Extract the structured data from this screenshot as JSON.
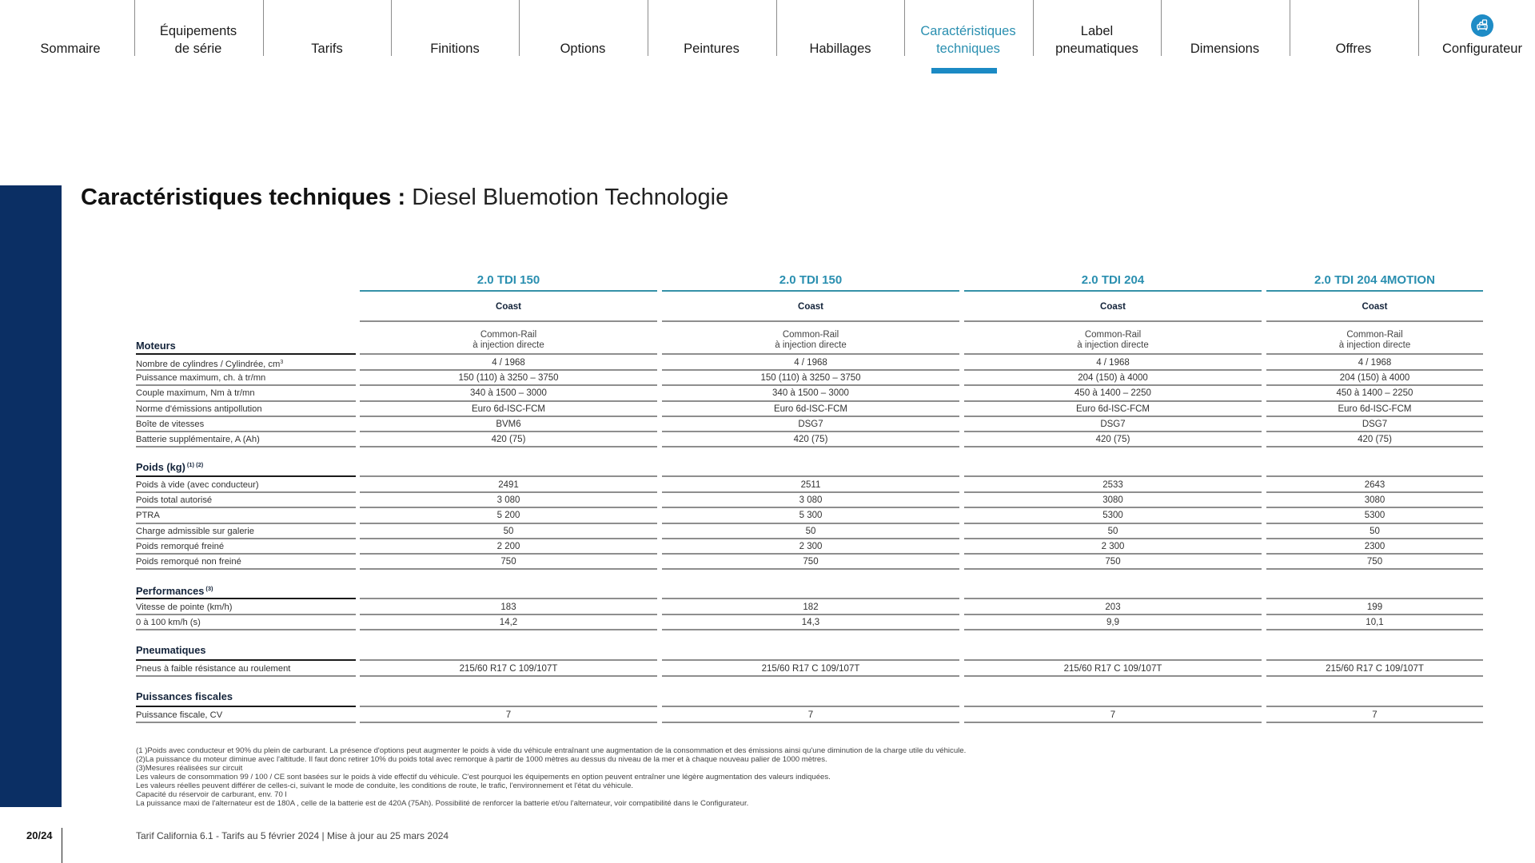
{
  "nav": {
    "items": [
      {
        "label": "Sommaire",
        "active": false
      },
      {
        "label": "Équipements\nde série",
        "active": false
      },
      {
        "label": "Tarifs",
        "active": false
      },
      {
        "label": "Finitions",
        "active": false
      },
      {
        "label": "Options",
        "active": false
      },
      {
        "label": "Peintures",
        "active": false
      },
      {
        "label": "Habillages",
        "active": false
      },
      {
        "label": "Caractéristiques\ntechniques",
        "active": true
      },
      {
        "label": "Label\npneumatiques",
        "active": false
      },
      {
        "label": "Dimensions",
        "active": false
      },
      {
        "label": "Offres",
        "active": false
      },
      {
        "label": "Configurateur",
        "active": false,
        "icon": "car-configurator-icon"
      }
    ],
    "active_color": "#2a8fb0",
    "underline_color": "#1b8ac4"
  },
  "page": {
    "title_bold": "Caractéristiques techniques :",
    "title_light": " Diesel Bluemotion Technologie",
    "sidebar_color": "#0b2f64"
  },
  "table": {
    "columns": [
      {
        "model": "2.0 TDI 150",
        "trim": "Coast",
        "injection_1": "Common-Rail",
        "injection_2": "à injection directe"
      },
      {
        "model": "2.0 TDI 150",
        "trim": "Coast",
        "injection_1": "Common-Rail",
        "injection_2": "à injection directe"
      },
      {
        "model": "2.0 TDI 204",
        "trim": "Coast",
        "injection_1": "Common-Rail",
        "injection_2": "à injection directe"
      },
      {
        "model": "2.0 TDI 204 4MOTION",
        "trim": "Coast",
        "injection_1": "Common-Rail",
        "injection_2": "à injection directe"
      }
    ],
    "sections": [
      {
        "title": "Moteurs",
        "sup": "",
        "rows": [
          {
            "label": "Nombre de cylindres / Cylindrée, cm",
            "label_sup": "3",
            "values": [
              "4 / 1968",
              "4 / 1968",
              "4 / 1968",
              "4 / 1968"
            ]
          },
          {
            "label": "Puissance maximum, ch. à tr/mn",
            "values": [
              "150 (110) à 3250 – 3750",
              "150 (110) à 3250 – 3750",
              "204 (150) à 4000",
              "204 (150) à 4000"
            ]
          },
          {
            "label": "Couple maximum, Nm à tr/mn",
            "values": [
              "340 à 1500 – 3000",
              "340 à 1500 – 3000",
              "450 à 1400 – 2250",
              "450 à 1400 – 2250"
            ]
          },
          {
            "label": "Norme d'émissions antipollution",
            "values": [
              "Euro 6d-ISC-FCM",
              "Euro 6d-ISC-FCM",
              "Euro 6d-ISC-FCM",
              "Euro 6d-ISC-FCM"
            ]
          },
          {
            "label": "Boîte de vitesses",
            "values": [
              "BVM6",
              "DSG7",
              "DSG7",
              "DSG7"
            ]
          },
          {
            "label": "Batterie supplémentaire, A (Ah)",
            "values": [
              "420 (75)",
              "420 (75)",
              "420 (75)",
              "420 (75)"
            ]
          }
        ]
      },
      {
        "title": "Poids (kg)",
        "sup": "(1) (2)",
        "rows": [
          {
            "label": "Poids à vide (avec conducteur)",
            "values": [
              "2491",
              "2511",
              "2533",
              "2643"
            ]
          },
          {
            "label": "Poids total autorisé",
            "values": [
              "3 080",
              "3 080",
              "3080",
              "3080"
            ]
          },
          {
            "label": "PTRA",
            "values": [
              "5 200",
              "5 300",
              "5300",
              "5300"
            ]
          },
          {
            "label": "Charge admissible sur galerie",
            "values": [
              "50",
              "50",
              "50",
              "50"
            ]
          },
          {
            "label": "Poids remorqué freiné",
            "values": [
              "2 200",
              "2 300",
              "2 300",
              "2300"
            ]
          },
          {
            "label": "Poids remorqué non freiné",
            "values": [
              "750",
              "750",
              "750",
              "750"
            ]
          }
        ]
      },
      {
        "title": "Performances",
        "sup": "(3)",
        "rows": [
          {
            "label": "Vitesse de pointe (km/h)",
            "values": [
              "183",
              "182",
              "203",
              "199"
            ]
          },
          {
            "label": "0 à 100 km/h (s)",
            "values": [
              "14,2",
              "14,3",
              "9,9",
              "10,1"
            ]
          }
        ]
      },
      {
        "title": "Pneumatiques",
        "sup": "",
        "rows": [
          {
            "label": "Pneus à faible résistance au roulement",
            "values": [
              "215/60 R17 C 109/107T",
              "215/60 R17 C 109/107T",
              "215/60 R17 C 109/107T",
              "215/60 R17 C 109/107T"
            ]
          }
        ]
      },
      {
        "title": "Puissances fiscales",
        "sup": "",
        "rows": [
          {
            "label": "Puissance fiscale, CV",
            "values": [
              "7",
              "7",
              "7",
              "7"
            ]
          }
        ]
      }
    ]
  },
  "footnotes": [
    "(1 )Poids avec conducteur et 90% du plein de carburant. La présence d'options peut augmenter le poids à vide du véhicule entraînant une augmentation de la consommation et des émissions ainsi qu'une diminution de la charge utile du véhicule.",
    "(2)La puissance du moteur diminue avec l'altitude. Il faut donc retirer 10% du poids total avec remorque à partir de 1000 mètres au dessus du niveau de la mer et à chaque nouveau palier de 1000 mètres.",
    "(3)Mesures réalisées sur circuit",
    "Les valeurs de consommation 99 / 100 / CE sont basées sur le poids à vide effectif du véhicule. C'est pourquoi les équipements en option peuvent entraîner une légère augmentation des valeurs indiquées.",
    "Les valeurs réelles peuvent différer de celles-ci, suivant le mode de conduite, les conditions de route, le trafic, l'environnement et l'état du véhicule.",
    "Capacité du réservoir de carburant, env. 70 l",
    "La puissance maxi de l'alternateur est de 180A , celle de la batterie est de 420A (75Ah). Possibilité de renforcer la batterie et/ou l'alternateur, voir compatibilité dans le Configurateur."
  ],
  "footer": {
    "page_number": "20/24",
    "text": "Tarif California 6.1 - Tarifs au 5 février 2024 | Mise à jour au 25 mars 2024"
  }
}
